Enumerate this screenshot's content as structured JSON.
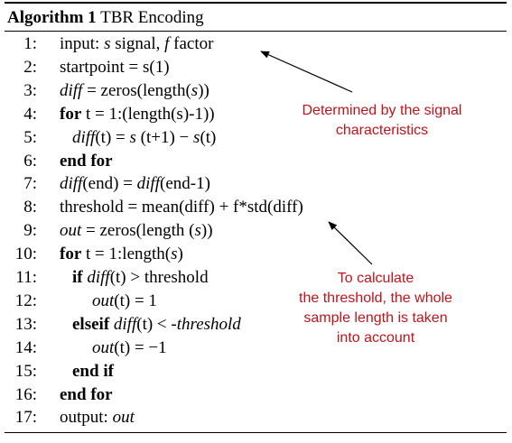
{
  "algorithm": {
    "label": "Algorithm 1",
    "name": "TBR Encoding"
  },
  "lines": [
    {
      "num": "1:",
      "indent": 0,
      "parts": [
        {
          "t": "input: ",
          "s": "n"
        },
        {
          "t": "s",
          "s": "i"
        },
        {
          "t": " signal, ",
          "s": "n"
        },
        {
          "t": "f",
          "s": "i"
        },
        {
          "t": "  factor",
          "s": "n"
        }
      ]
    },
    {
      "num": "2:",
      "indent": 0,
      "parts": [
        {
          "t": "startpoint = s(1)",
          "s": "n"
        }
      ]
    },
    {
      "num": "3:",
      "indent": 0,
      "parts": [
        {
          "t": "diff",
          "s": "i"
        },
        {
          "t": " = zeros(length(",
          "s": "n"
        },
        {
          "t": "s",
          "s": "i"
        },
        {
          "t": "))",
          "s": "n"
        }
      ]
    },
    {
      "num": "4:",
      "indent": 0,
      "parts": [
        {
          "t": "for",
          "s": "b"
        },
        {
          "t": " t = 1:(length(s)-1))",
          "s": "n"
        }
      ]
    },
    {
      "num": "5:",
      "indent": 1,
      "parts": [
        {
          "t": "diff",
          "s": "i"
        },
        {
          "t": "(t) = ",
          "s": "n"
        },
        {
          "t": "s",
          "s": "i"
        },
        {
          "t": " (t+1) − ",
          "s": "n"
        },
        {
          "t": "s",
          "s": "i"
        },
        {
          "t": "(t)",
          "s": "n"
        }
      ]
    },
    {
      "num": "6:",
      "indent": 0,
      "parts": [
        {
          "t": "end for",
          "s": "b"
        }
      ]
    },
    {
      "num": "7:",
      "indent": 0,
      "parts": [
        {
          "t": "diff",
          "s": "i"
        },
        {
          "t": "(end) = ",
          "s": "n"
        },
        {
          "t": "diff",
          "s": "i"
        },
        {
          "t": "(end-1)",
          "s": "n"
        }
      ]
    },
    {
      "num": "8:",
      "indent": 0,
      "parts": [
        {
          "t": "threshold = mean(diff) + f*std(diff)",
          "s": "n"
        }
      ]
    },
    {
      "num": "9:",
      "indent": 0,
      "parts": [
        {
          "t": "out",
          "s": "i"
        },
        {
          "t": " = zeros(length (",
          "s": "n"
        },
        {
          "t": "s",
          "s": "i"
        },
        {
          "t": "))",
          "s": "n"
        }
      ]
    },
    {
      "num": "10:",
      "indent": 0,
      "parts": [
        {
          "t": "for",
          "s": "b"
        },
        {
          "t": " t = 1:length(",
          "s": "n"
        },
        {
          "t": "s",
          "s": "i"
        },
        {
          "t": ")",
          "s": "n"
        }
      ]
    },
    {
      "num": "11:",
      "indent": 1,
      "parts": [
        {
          "t": "if",
          "s": "b"
        },
        {
          "t": " ",
          "s": "n"
        },
        {
          "t": "diff",
          "s": "i"
        },
        {
          "t": "(t) > threshold",
          "s": "n"
        }
      ]
    },
    {
      "num": "12:",
      "indent": 2,
      "parts": [
        {
          "t": "out",
          "s": "i"
        },
        {
          "t": "(t) = 1",
          "s": "n"
        }
      ]
    },
    {
      "num": "13:",
      "indent": 1,
      "parts": [
        {
          "t": "elseif",
          "s": "b"
        },
        {
          "t": " ",
          "s": "n"
        },
        {
          "t": "diff",
          "s": "i"
        },
        {
          "t": "(t) < ",
          "s": "n"
        },
        {
          "t": "-threshold",
          "s": "i"
        }
      ]
    },
    {
      "num": "14:",
      "indent": 2,
      "parts": [
        {
          "t": "out",
          "s": "i"
        },
        {
          "t": "(t) = −1",
          "s": "n"
        }
      ]
    },
    {
      "num": "15:",
      "indent": 1,
      "parts": [
        {
          "t": "end if",
          "s": "b"
        }
      ]
    },
    {
      "num": "16:",
      "indent": 0,
      "parts": [
        {
          "t": "end for",
          "s": "b"
        }
      ]
    },
    {
      "num": "17:",
      "indent": 0,
      "parts": [
        {
          "t": "output: ",
          "s": "n"
        },
        {
          "t": "out",
          "s": "i"
        }
      ]
    }
  ],
  "annotations": {
    "signal_note": [
      "Determined by the signal",
      "characteristics"
    ],
    "threshold_note": [
      "To calculate",
      "the threshold, the whole",
      "sample length is taken",
      "into account"
    ]
  },
  "colors": {
    "annotation": "#c0141b"
  }
}
